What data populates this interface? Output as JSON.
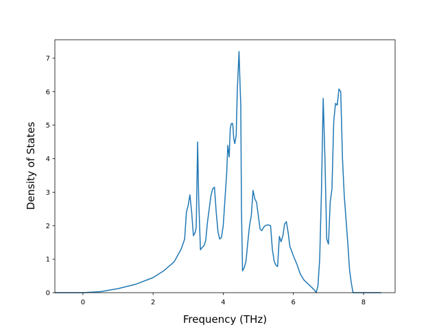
{
  "chart_data": {
    "type": "line",
    "title": "",
    "xlabel": "Frequency (THz)",
    "ylabel": "Density of States",
    "xlim": [
      -0.8,
      8.9
    ],
    "ylim": [
      0,
      7.55
    ],
    "xticks": [
      0,
      2,
      4,
      6,
      8
    ],
    "yticks": [
      0,
      1,
      2,
      3,
      4,
      5,
      6,
      7
    ],
    "grid": false,
    "legend": "none",
    "series": [
      {
        "color": "#1f77b4",
        "x": [
          -0.8,
          0.0,
          0.5,
          1.0,
          1.5,
          2.0,
          2.3,
          2.6,
          2.8,
          2.9,
          2.95,
          3.0,
          3.05,
          3.1,
          3.15,
          3.2,
          3.23,
          3.27,
          3.3,
          3.35,
          3.4,
          3.45,
          3.5,
          3.55,
          3.6,
          3.65,
          3.7,
          3.75,
          3.8,
          3.85,
          3.9,
          3.95,
          4.0,
          4.05,
          4.1,
          4.13,
          4.17,
          4.2,
          4.23,
          4.27,
          4.3,
          4.33,
          4.37,
          4.4,
          4.45,
          4.48,
          4.5,
          4.52,
          4.55,
          4.6,
          4.65,
          4.7,
          4.75,
          4.8,
          4.85,
          4.9,
          4.95,
          5.0,
          5.05,
          5.1,
          5.15,
          5.2,
          5.25,
          5.3,
          5.35,
          5.4,
          5.45,
          5.5,
          5.55,
          5.6,
          5.65,
          5.7,
          5.75,
          5.8,
          5.85,
          5.9,
          6.0,
          6.1,
          6.2,
          6.3,
          6.4,
          6.5,
          6.6,
          6.65,
          6.7,
          6.75,
          6.8,
          6.85,
          6.9,
          6.95,
          7.0,
          7.05,
          7.1,
          7.15,
          7.2,
          7.25,
          7.3,
          7.35,
          7.4,
          7.45,
          7.5,
          7.55,
          7.6,
          7.65,
          7.7,
          7.8,
          8.0,
          8.5
        ],
        "y": [
          0.0,
          0.0,
          0.03,
          0.12,
          0.25,
          0.45,
          0.65,
          0.92,
          1.3,
          1.6,
          2.4,
          2.6,
          2.92,
          2.4,
          1.7,
          1.8,
          1.95,
          4.5,
          2.8,
          1.28,
          1.35,
          1.4,
          1.55,
          2.1,
          2.5,
          2.9,
          3.1,
          3.15,
          2.4,
          1.82,
          1.6,
          1.65,
          2.0,
          2.8,
          3.6,
          4.4,
          4.05,
          4.9,
          5.05,
          5.05,
          4.6,
          4.45,
          4.7,
          6.0,
          7.2,
          6.2,
          5.6,
          2.5,
          0.65,
          0.75,
          0.95,
          1.5,
          2.0,
          2.3,
          3.05,
          2.8,
          2.7,
          2.3,
          1.9,
          1.85,
          1.95,
          2.0,
          2.02,
          2.02,
          2.0,
          1.3,
          0.95,
          0.82,
          0.78,
          1.68,
          1.52,
          1.7,
          2.05,
          2.12,
          1.8,
          1.38,
          1.1,
          0.85,
          0.55,
          0.38,
          0.28,
          0.18,
          0.08,
          0.0,
          0.2,
          1.0,
          3.0,
          5.8,
          4.0,
          1.6,
          1.45,
          2.7,
          3.1,
          5.1,
          5.65,
          5.6,
          6.08,
          6.0,
          4.0,
          2.9,
          2.2,
          1.5,
          0.7,
          0.3,
          0.0,
          0.0,
          0.0,
          0.0
        ]
      }
    ]
  }
}
